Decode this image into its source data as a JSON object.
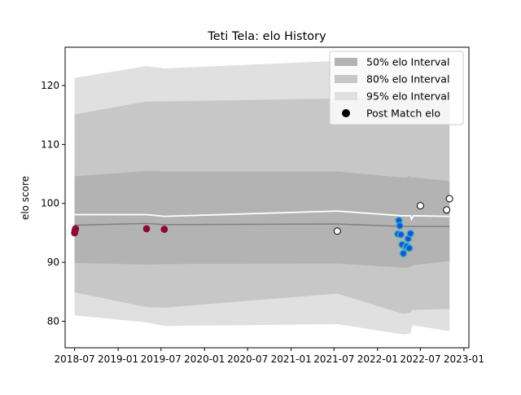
{
  "chart_data": {
    "type": "line",
    "title": "Teti Tela: elo History",
    "xlabel": "",
    "ylabel": "elo score",
    "xlim": [
      "2018-05-22",
      "2023-01-22"
    ],
    "ylim": [
      75.5,
      126.5
    ],
    "x_ticks": [
      "2018-07",
      "2019-01",
      "2019-07",
      "2020-01",
      "2020-07",
      "2021-01",
      "2021-07",
      "2022-01",
      "2022-07",
      "2023-01"
    ],
    "y_ticks": [
      80,
      90,
      100,
      110,
      120
    ],
    "legend_position": "top-right",
    "legend": [
      {
        "label": "50% elo Interval",
        "kind": "patch",
        "color": "#b3b3b3"
      },
      {
        "label": "80% elo Interval",
        "kind": "patch",
        "color": "#c7c7c7"
      },
      {
        "label": "95% elo Interval",
        "kind": "patch",
        "color": "#e0e0e0"
      },
      {
        "label": "Post Match elo",
        "kind": "marker",
        "color": "#000000"
      }
    ],
    "colors": {
      "band_50": "#b3b3b3",
      "band_80": "#c7c7c7",
      "band_95": "#e0e0e0",
      "median_line": "#808080",
      "mean_line": "#ffffff",
      "loss_point": "#8b0a32",
      "win_point": "#ffffff",
      "blue_point": "#1f4fd8",
      "blue_point_edge": "#2ab5c2"
    },
    "bands": {
      "x": [
        "2018-07-01",
        "2019-05-01",
        "2019-07-15",
        "2021-07-15",
        "2022-04-15",
        "2022-05-01",
        "2022-05-20",
        "2022-05-25",
        "2022-06-01",
        "2022-11-01"
      ],
      "p95_lower": [
        81.0,
        79.8,
        79.2,
        79.5,
        77.8,
        77.8,
        77.9,
        79.0,
        79.3,
        78.3
      ],
      "p95_upper": [
        121.3,
        123.3,
        122.9,
        124.2,
        124.5,
        124.5,
        124.5,
        124.5,
        124.5,
        124.5
      ],
      "p80_lower": [
        84.9,
        82.4,
        82.3,
        84.7,
        81.3,
        81.3,
        81.4,
        81.8,
        81.9,
        82.1
      ],
      "p80_upper": [
        115.1,
        117.3,
        117.3,
        117.8,
        118.4,
        118.4,
        118.4,
        118.4,
        118.4,
        118.4
      ],
      "p50_lower": [
        89.9,
        89.6,
        89.7,
        89.8,
        89.1,
        89.1,
        89.2,
        89.4,
        89.5,
        90.2
      ],
      "p50_upper": [
        104.6,
        105.5,
        105.4,
        105.4,
        104.4,
        104.4,
        104.7,
        104.3,
        104.4,
        103.8
      ],
      "median": [
        96.3,
        96.6,
        96.4,
        96.5,
        96.1,
        96.1,
        96.1,
        96.1,
        96.1,
        96.1
      ],
      "mean": [
        98.1,
        98.1,
        97.8,
        98.7,
        97.9,
        97.9,
        97.9,
        97.3,
        97.9,
        97.8
      ]
    },
    "points": [
      {
        "x": "2018-07-01",
        "y": 95.0,
        "style": "loss"
      },
      {
        "x": "2018-07-03",
        "y": 95.4,
        "style": "loss"
      },
      {
        "x": "2018-07-05",
        "y": 95.7,
        "style": "loss"
      },
      {
        "x": "2019-05-01",
        "y": 95.7,
        "style": "loss"
      },
      {
        "x": "2019-07-15",
        "y": 95.6,
        "style": "loss"
      },
      {
        "x": "2021-07-15",
        "y": 95.3,
        "style": "win"
      },
      {
        "x": "2022-04-01",
        "y": 97.1,
        "style": "blue"
      },
      {
        "x": "2022-04-05",
        "y": 96.2,
        "style": "blue"
      },
      {
        "x": "2022-03-28",
        "y": 94.8,
        "style": "blue"
      },
      {
        "x": "2022-04-10",
        "y": 94.7,
        "style": "blue"
      },
      {
        "x": "2022-04-15",
        "y": 93.0,
        "style": "blue"
      },
      {
        "x": "2022-04-20",
        "y": 91.5,
        "style": "blue"
      },
      {
        "x": "2022-05-01",
        "y": 92.6,
        "style": "blue"
      },
      {
        "x": "2022-05-05",
        "y": 92.7,
        "style": "blue"
      },
      {
        "x": "2022-05-10",
        "y": 94.0,
        "style": "blue"
      },
      {
        "x": "2022-05-15",
        "y": 92.4,
        "style": "blue"
      },
      {
        "x": "2022-05-20",
        "y": 94.9,
        "style": "blue"
      },
      {
        "x": "2022-07-01",
        "y": 99.6,
        "style": "win"
      },
      {
        "x": "2022-10-20",
        "y": 98.9,
        "style": "win"
      },
      {
        "x": "2022-11-01",
        "y": 100.8,
        "style": "win"
      }
    ]
  }
}
